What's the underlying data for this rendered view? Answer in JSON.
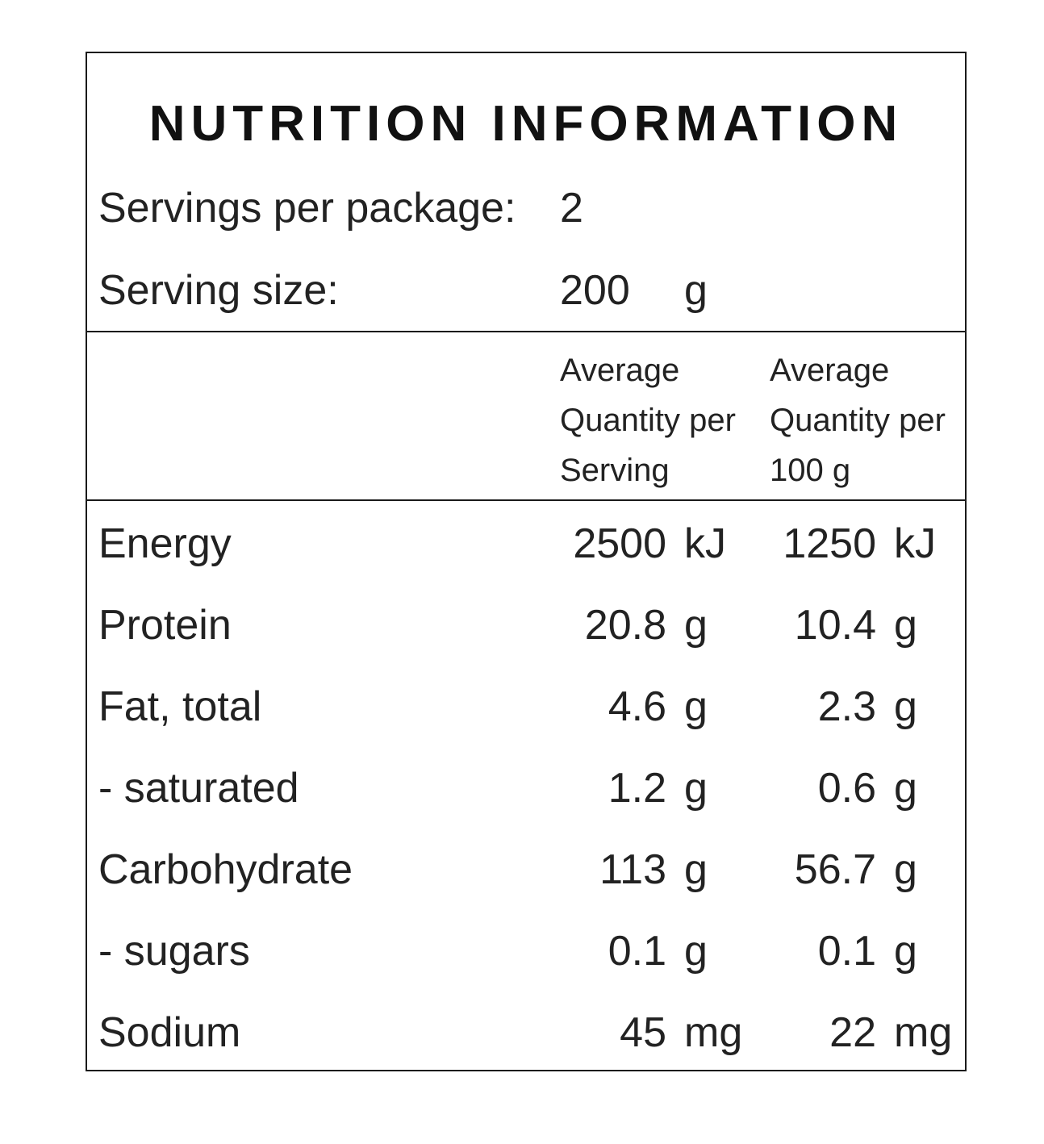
{
  "title": "NUTRITION INFORMATION",
  "servings_per_package": {
    "label": "Servings per package:",
    "value": "2"
  },
  "serving_size": {
    "label": "Serving size:",
    "value": "200",
    "unit": "g"
  },
  "column_headers": [
    [
      "Average",
      "Quantity per",
      "Serving"
    ],
    [
      "Average",
      "Quantity per",
      "100 g"
    ]
  ],
  "nutrients": [
    {
      "name": "Energy",
      "per_serving": "2500",
      "per_serving_unit": "kJ",
      "per_100g": "1250",
      "per_100g_unit": "kJ"
    },
    {
      "name": "Protein",
      "per_serving": "20.8",
      "per_serving_unit": "g",
      "per_100g": "10.4",
      "per_100g_unit": "g"
    },
    {
      "name": "Fat, total",
      "per_serving": "4.6",
      "per_serving_unit": "g",
      "per_100g": "2.3",
      "per_100g_unit": "g"
    },
    {
      "name": "- saturated",
      "per_serving": "1.2",
      "per_serving_unit": "g",
      "per_100g": "0.6",
      "per_100g_unit": "g"
    },
    {
      "name": "Carbohydrate",
      "per_serving": "113",
      "per_serving_unit": "g",
      "per_100g": "56.7",
      "per_100g_unit": "g"
    },
    {
      "name": "- sugars",
      "per_serving": "0.1",
      "per_serving_unit": "g",
      "per_100g": "0.1",
      "per_100g_unit": "g"
    },
    {
      "name": "Sodium",
      "per_serving": "45",
      "per_serving_unit": "mg",
      "per_100g": "22",
      "per_100g_unit": "mg"
    }
  ]
}
